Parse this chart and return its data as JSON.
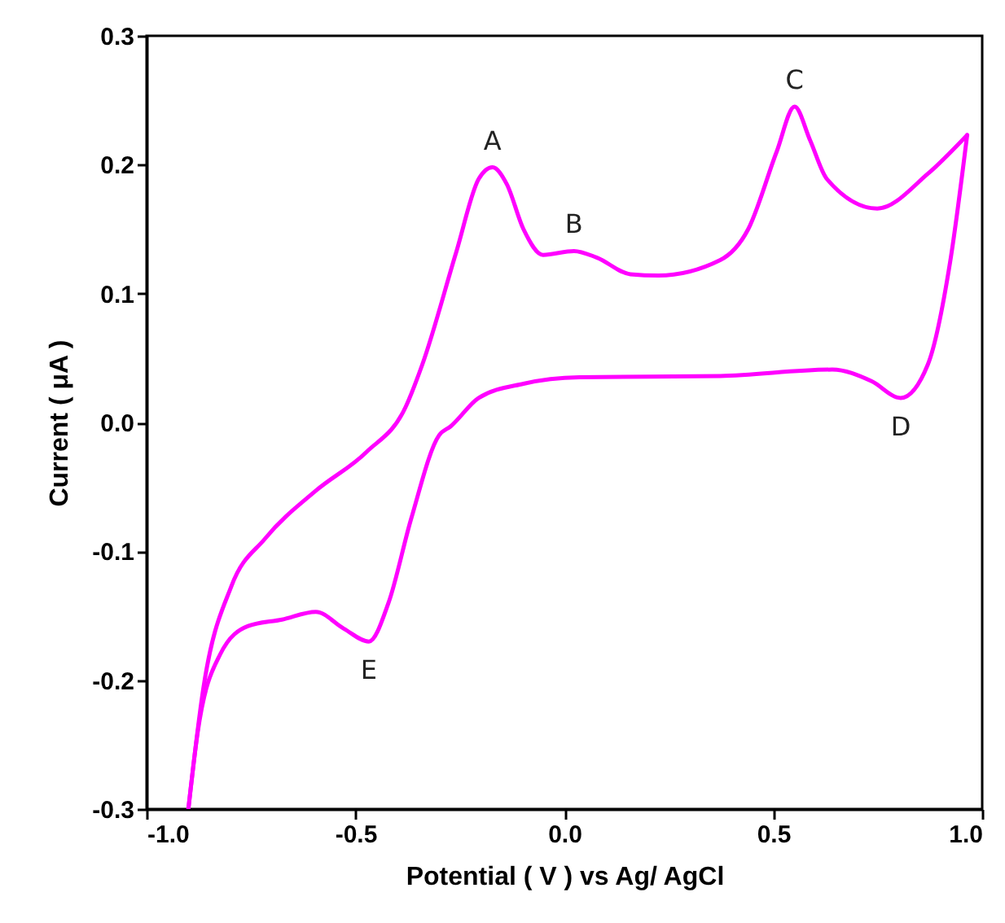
{
  "chart_data": {
    "type": "line",
    "xlabel": "Potential ( V ) vs Ag/ AgCl",
    "ylabel": "Current ( μA )",
    "xlim": [
      -1.0,
      1.0
    ],
    "xticks": [
      {
        "value": -1.0,
        "label": "-1.0"
      },
      {
        "value": -0.5,
        "label": "-0.5"
      },
      {
        "value": 0,
        "label": "0.0"
      },
      {
        "value": 0.5,
        "label": "0.5"
      },
      {
        "value": 1.0,
        "label": "1.0"
      }
    ],
    "ylim": [
      -0.3,
      0.3
    ],
    "yticks": [
      {
        "value": -0.3,
        "label": "-0.3"
      },
      {
        "value": -0.2,
        "label": "-0.2"
      },
      {
        "value": -0.1,
        "label": "-0.1"
      },
      {
        "value": 0,
        "label": "0.0"
      },
      {
        "value": 0.1,
        "label": "0.1"
      },
      {
        "value": 0.2,
        "label": "0.2"
      },
      {
        "value": 0.3,
        "label": "0.3"
      }
    ],
    "marker": "none",
    "line_style": "solid",
    "series": [
      {
        "color": "#ff00ff",
        "x": [
          -0.9,
          -0.864,
          -0.797,
          -0.716,
          -0.595,
          -0.474,
          -0.38,
          -0.34,
          -0.259,
          -0.205,
          -0.172,
          -0.138,
          -0.098,
          -0.051,
          0.023,
          0.077,
          0.158,
          0.225,
          0.373,
          0.44,
          0.508,
          0.551,
          0.588,
          0.628,
          0.749,
          0.87,
          0.964
        ],
        "values": [
          -0.3,
          -0.206,
          -0.127,
          -0.09,
          -0.053,
          -0.023,
          0.012,
          0.045,
          0.132,
          0.189,
          0.198,
          0.185,
          0.15,
          0.13,
          0.133,
          0.128,
          0.115,
          0.114,
          0.126,
          0.15,
          0.21,
          0.245,
          0.219,
          0.189,
          0.166,
          0.193,
          0.223
        ]
      },
      {
        "color": "#ff00ff",
        "x": [
          0.964,
          0.923,
          0.87,
          0.805,
          0.735,
          0.641,
          0.373,
          0.036,
          -0.098,
          -0.205,
          -0.272,
          -0.3,
          -0.367,
          -0.421,
          -0.468,
          -0.528,
          -0.595,
          -0.676,
          -0.757,
          -0.824,
          -0.878,
          -0.9
        ],
        "values": [
          0.223,
          0.124,
          0.045,
          0.019,
          0.032,
          0.041,
          0.036,
          0.035,
          0.03,
          0.019,
          -0.003,
          -0.01,
          -0.075,
          -0.14,
          -0.17,
          -0.16,
          -0.147,
          -0.153,
          -0.158,
          -0.18,
          -0.241,
          -0.3
        ]
      }
    ],
    "annotations": [
      {
        "text": "A",
        "x": -0.172,
        "y": 0.198
      },
      {
        "text": "B",
        "x": 0.023,
        "y": 0.133
      },
      {
        "text": "C",
        "x": 0.551,
        "y": 0.245
      },
      {
        "text": "D",
        "x": 0.805,
        "y": 0.019
      },
      {
        "text": "E",
        "x": -0.468,
        "y": -0.17
      }
    ]
  }
}
